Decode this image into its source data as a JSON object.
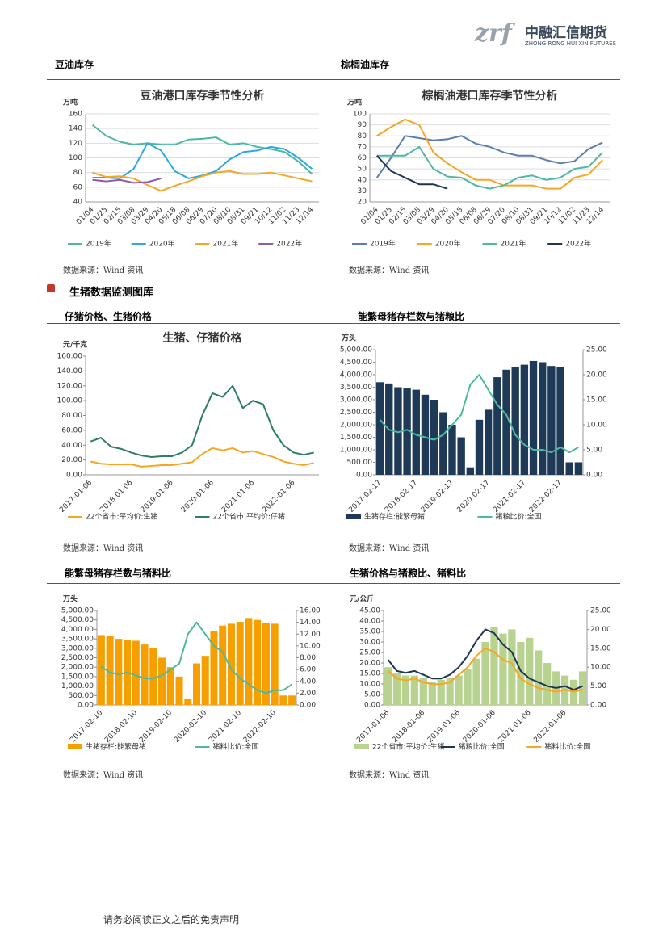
{
  "header": {
    "logo_mark": "zrf",
    "logo_cn": "中融汇信期货",
    "logo_en": "ZHONG RONG HUI XIN FUTURES"
  },
  "panel_titles": [
    "豆油库存",
    "棕榈油库存",
    "仔猪价格、生猪价格",
    "能繁母猪存栏数与猪粮比",
    "能繁母猪存栏数与猪料比",
    "生猪价格与猪粮比、猪料比"
  ],
  "section_title": "生猪数据监测图库",
  "sources": [
    "数据来源：Wind 资讯",
    "数据来源：Wind 资讯",
    "数据来源：Wind 资讯",
    "数据来源：Wind 资讯",
    "数据来源：Wind 资讯",
    "数据来源：Wind 资讯"
  ],
  "footer": "请务必阅读正文之后的免责声明",
  "chart_data": [
    {
      "type": "line",
      "title": "豆油港口库存季节性分析",
      "y_label": "万吨",
      "grid": true,
      "categories": [
        "01/04",
        "01/25",
        "02/15",
        "03/08",
        "03/29",
        "04/20",
        "05/18",
        "06/08",
        "06/29",
        "07/20",
        "08/10",
        "08/31",
        "09/21",
        "10/12",
        "11/02",
        "11/23",
        "12/14"
      ],
      "ylim": [
        40,
        160
      ],
      "yticks": [
        40,
        60,
        80,
        100,
        120,
        140,
        160
      ],
      "series": [
        {
          "name": "2019年",
          "color": "#4fb8a0",
          "values": [
            145,
            130,
            122,
            118,
            120,
            118,
            118,
            125,
            126,
            128,
            118,
            120,
            115,
            112,
            108,
            95,
            78
          ]
        },
        {
          "name": "2020年",
          "color": "#2ea8e0",
          "values": [
            73,
            73,
            72,
            85,
            120,
            110,
            82,
            72,
            76,
            82,
            98,
            108,
            110,
            115,
            112,
            100,
            85
          ]
        },
        {
          "name": "2021年",
          "color": "#f5a623",
          "values": [
            80,
            74,
            75,
            72,
            63,
            55,
            62,
            68,
            75,
            80,
            82,
            78,
            78,
            80,
            76,
            72,
            68
          ]
        },
        {
          "name": "2022年",
          "color": "#8e5ba8",
          "values": [
            70,
            68,
            70,
            66,
            67,
            72,
            null,
            null,
            null,
            null,
            null,
            null,
            null,
            null,
            null,
            null,
            null
          ]
        }
      ]
    },
    {
      "type": "line",
      "title": "棕榈油港口库存季节性分析",
      "y_label": "万吨",
      "grid": true,
      "categories": [
        "01/04",
        "01/25",
        "02/15",
        "03/08",
        "03/29",
        "04/20",
        "05/18",
        "06/08",
        "06/29",
        "07/20",
        "08/10",
        "08/31",
        "09/21",
        "10/12",
        "11/02",
        "11/23",
        "12/14"
      ],
      "ylim": [
        20,
        100
      ],
      "yticks": [
        20,
        30,
        40,
        50,
        60,
        70,
        80,
        90,
        100
      ],
      "series": [
        {
          "name": "2019年",
          "color": "#5a7fae",
          "values": [
            42,
            60,
            80,
            78,
            76,
            77,
            80,
            73,
            70,
            65,
            62,
            62,
            58,
            55,
            57,
            68,
            74
          ]
        },
        {
          "name": "2020年",
          "color": "#f5a623",
          "values": [
            80,
            88,
            95,
            90,
            65,
            55,
            47,
            40,
            40,
            35,
            35,
            35,
            32,
            32,
            42,
            45,
            58
          ]
        },
        {
          "name": "2021年",
          "color": "#4fb8a0",
          "values": [
            62,
            62,
            62,
            70,
            50,
            43,
            42,
            35,
            32,
            35,
            42,
            44,
            40,
            42,
            50,
            52,
            65
          ]
        },
        {
          "name": "2022年",
          "color": "#1f3550",
          "values": [
            62,
            48,
            42,
            36,
            36,
            32,
            null,
            null,
            null,
            null,
            null,
            null,
            null,
            null,
            null,
            null,
            null
          ]
        }
      ]
    },
    {
      "type": "line",
      "title": "生猪、仔猪价格",
      "y_label": "元/千克",
      "grid": false,
      "categories": [
        "2017-01-06",
        null,
        null,
        null,
        "2018-01-06",
        null,
        null,
        null,
        "2019-01-06",
        null,
        null,
        null,
        "2020-01-06",
        null,
        null,
        null,
        "2021-01-06",
        null,
        null,
        null,
        "2022-01-06",
        null,
        null
      ],
      "ylim": [
        0,
        160
      ],
      "yticks": [
        {
          "value": 0,
          "label": "0.00"
        },
        {
          "value": 20,
          "label": "20.00"
        },
        {
          "value": 40,
          "label": "40.00"
        },
        {
          "value": 60,
          "label": "60.00"
        },
        {
          "value": 80,
          "label": "80.00"
        },
        {
          "value": 100,
          "label": "100.00"
        },
        {
          "value": 120,
          "label": "120.00"
        },
        {
          "value": 140,
          "label": "140.00"
        },
        {
          "value": 160,
          "label": "160.00"
        }
      ],
      "series": [
        {
          "name": "22个省市:平均价:生猪",
          "color": "#f5a623",
          "values": [
            18,
            15,
            14,
            14,
            14,
            11,
            12,
            13,
            13,
            15,
            17,
            28,
            36,
            33,
            36,
            30,
            32,
            28,
            24,
            18,
            15,
            13,
            16
          ]
        },
        {
          "name": "22个省市:平均价:仔猪",
          "color": "#2e7d6b",
          "values": [
            45,
            50,
            38,
            35,
            30,
            26,
            24,
            25,
            25,
            30,
            40,
            80,
            110,
            105,
            120,
            90,
            100,
            95,
            60,
            40,
            30,
            27,
            30
          ]
        }
      ]
    },
    {
      "type": "combo",
      "y_label": "万头",
      "grid": false,
      "categories": [
        "2017-02-17",
        null,
        null,
        null,
        "2018-02-17",
        null,
        null,
        null,
        "2019-02-17",
        null,
        null,
        null,
        "2020-02-17",
        null,
        null,
        null,
        "2021-02-17",
        null,
        null,
        null,
        "2022-02-17",
        null,
        null
      ],
      "ylim": [
        0,
        5000
      ],
      "yticks": [
        {
          "value": 0,
          "label": "0.00"
        },
        {
          "value": 500,
          "label": "500.00"
        },
        {
          "value": 1000,
          "label": "1,000.00"
        },
        {
          "value": 1500,
          "label": "1,500.00"
        },
        {
          "value": 2000,
          "label": "2,000.00"
        },
        {
          "value": 2500,
          "label": "2,500.00"
        },
        {
          "value": 3000,
          "label": "3,000.00"
        },
        {
          "value": 3500,
          "label": "3,500.00"
        },
        {
          "value": 4000,
          "label": "4,000.00"
        },
        {
          "value": 4500,
          "label": "4,500.00"
        },
        {
          "value": 5000,
          "label": "5,000.00"
        }
      ],
      "y2lim": [
        0,
        25
      ],
      "y2ticks": [
        {
          "value": 0,
          "label": "0.00"
        },
        {
          "value": 5,
          "label": "5.00"
        },
        {
          "value": 10,
          "label": "10.00"
        },
        {
          "value": 15,
          "label": "15.00"
        },
        {
          "value": 20,
          "label": "20.00"
        },
        {
          "value": 25,
          "label": "25.00"
        }
      ],
      "series": [
        {
          "name": "生猪存栏:能繁母猪",
          "type": "bar",
          "color": "#1f3a57",
          "values": [
            3700,
            3650,
            3500,
            3450,
            3400,
            3200,
            3000,
            2500,
            2000,
            1500,
            300,
            2200,
            2600,
            3900,
            4200,
            4300,
            4400,
            4550,
            4500,
            4350,
            4300,
            500,
            500
          ]
        },
        {
          "name": "猪粮比价:全国",
          "type": "line",
          "axis": "y2",
          "color": "#4fb8a0",
          "values": [
            11,
            9,
            8.5,
            9,
            8,
            7.5,
            7,
            8,
            10,
            12,
            18,
            20,
            17,
            14,
            12,
            8,
            6,
            5,
            5,
            4.5,
            5.5,
            4.5,
            5.5
          ]
        }
      ]
    },
    {
      "type": "combo",
      "y_label": "万头",
      "grid": false,
      "categories": [
        "2017-02-10",
        null,
        null,
        null,
        "2018-02-10",
        null,
        null,
        null,
        "2019-02-10",
        null,
        null,
        null,
        "2020-02-10",
        null,
        null,
        null,
        "2021-02-10",
        null,
        null,
        null,
        "2022-02-10",
        null,
        null
      ],
      "ylim": [
        0,
        5000
      ],
      "yticks": [
        {
          "value": 0,
          "label": "0.00"
        },
        {
          "value": 500,
          "label": "500.00"
        },
        {
          "value": 1000,
          "label": "1,000.00"
        },
        {
          "value": 1500,
          "label": "1,500.00"
        },
        {
          "value": 2000,
          "label": "2,000.00"
        },
        {
          "value": 2500,
          "label": "2,500.00"
        },
        {
          "value": 3000,
          "label": "3,000.00"
        },
        {
          "value": 3500,
          "label": "3,500.00"
        },
        {
          "value": 4000,
          "label": "4,000.00"
        },
        {
          "value": 4500,
          "label": "4,500.00"
        },
        {
          "value": 5000,
          "label": "5,000.00"
        }
      ],
      "y2lim": [
        0,
        16
      ],
      "y2ticks": [
        {
          "value": 0,
          "label": "0.00"
        },
        {
          "value": 2,
          "label": "2.00"
        },
        {
          "value": 4,
          "label": "4.00"
        },
        {
          "value": 6,
          "label": "6.00"
        },
        {
          "value": 8,
          "label": "8.00"
        },
        {
          "value": 10,
          "label": "10.00"
        },
        {
          "value": 12,
          "label": "12.00"
        },
        {
          "value": 14,
          "label": "14.00"
        },
        {
          "value": 16,
          "label": "16.00"
        }
      ],
      "series": [
        {
          "name": "生猪存栏:能繁母猪",
          "type": "bar",
          "color": "#f5a000",
          "values": [
            3700,
            3650,
            3500,
            3450,
            3400,
            3200,
            3000,
            2500,
            2000,
            1500,
            300,
            2200,
            2600,
            3900,
            4200,
            4300,
            4400,
            4600,
            4500,
            4350,
            4300,
            500,
            500
          ]
        },
        {
          "name": "猪料比价:全国",
          "type": "line",
          "axis": "y2",
          "color": "#4fb8a0",
          "values": [
            6.5,
            5.5,
            5.2,
            5.5,
            5,
            4.5,
            4.5,
            5,
            6,
            7,
            12,
            14,
            12,
            10,
            9,
            6,
            4.5,
            3.5,
            2.5,
            2,
            2.5,
            2.5,
            3.5
          ]
        }
      ]
    },
    {
      "type": "combo",
      "y_label": "元/公斤",
      "grid": false,
      "categories": [
        "2017-01-06",
        null,
        null,
        null,
        "2018-01-06",
        null,
        null,
        null,
        "2019-01-06",
        null,
        null,
        null,
        "2020-01-06",
        null,
        null,
        null,
        "2021-01-06",
        null,
        null,
        null,
        "2022-01-06",
        null,
        null
      ],
      "ylim": [
        0,
        45
      ],
      "yticks": [
        {
          "value": 0,
          "label": "0.00"
        },
        {
          "value": 5,
          "label": "5.00"
        },
        {
          "value": 10,
          "label": "10.00"
        },
        {
          "value": 15,
          "label": "15.00"
        },
        {
          "value": 20,
          "label": "20.00"
        },
        {
          "value": 25,
          "label": "25.00"
        },
        {
          "value": 30,
          "label": "30.00"
        },
        {
          "value": 35,
          "label": "35.00"
        },
        {
          "value": 40,
          "label": "40.00"
        },
        {
          "value": 45,
          "label": "45.00"
        }
      ],
      "y2lim": [
        0,
        25
      ],
      "y2ticks": [
        {
          "value": 0,
          "label": "0.00"
        },
        {
          "value": 5,
          "label": "5.00"
        },
        {
          "value": 10,
          "label": "10.00"
        },
        {
          "value": 15,
          "label": "15.00"
        },
        {
          "value": 20,
          "label": "20.00"
        },
        {
          "value": 25,
          "label": "25.00"
        }
      ],
      "series": [
        {
          "name": "22个省市:平均价:生猪",
          "type": "bar",
          "color": "#b8d38f",
          "values": [
            18,
            15,
            14,
            14,
            13,
            11,
            12,
            13,
            14,
            17,
            22,
            30,
            37,
            34,
            36,
            30,
            32,
            26,
            20,
            16,
            14,
            12,
            16
          ]
        },
        {
          "name": "猪粮比价:全国",
          "type": "line",
          "axis": "y2",
          "color": "#1f3550",
          "values": [
            12,
            9,
            8.5,
            9,
            8,
            7,
            7,
            8,
            10,
            13,
            17,
            20,
            19,
            16,
            14,
            9,
            7,
            6,
            5,
            4.5,
            5,
            4,
            5
          ]
        },
        {
          "name": "猪料比价:全国",
          "type": "line",
          "axis": "y2",
          "color": "#f5a623",
          "values": [
            9,
            7,
            6.5,
            7,
            6,
            5.5,
            5.5,
            6,
            8,
            10,
            13,
            15,
            14,
            12,
            11,
            7,
            5.5,
            4.5,
            4,
            3.5,
            4,
            3.5,
            4
          ]
        }
      ]
    }
  ]
}
